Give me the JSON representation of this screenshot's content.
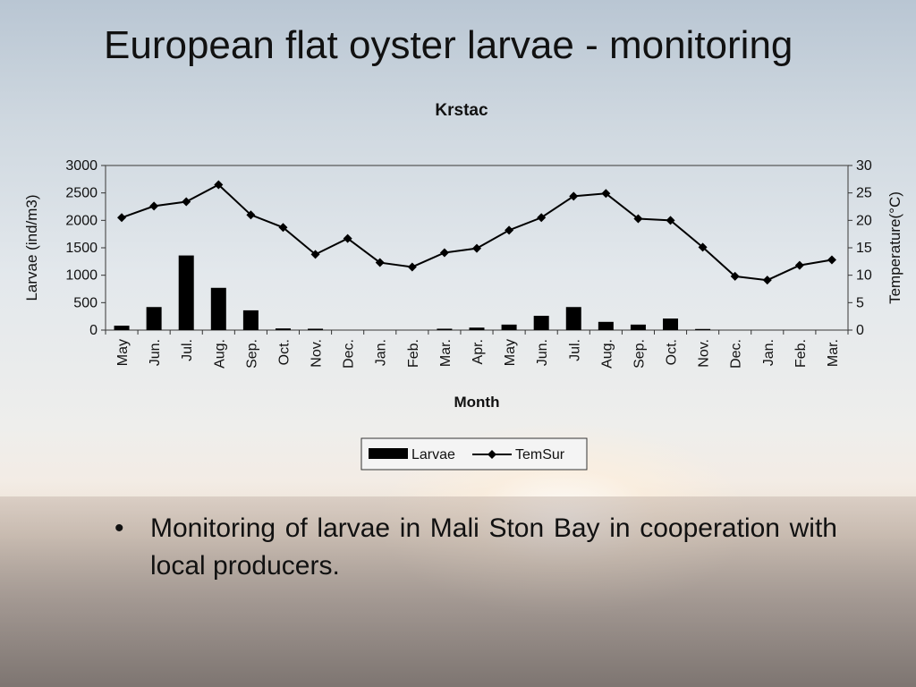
{
  "slide": {
    "title": "European flat oyster larvae - monitoring",
    "bullet": "Monitoring of larvae in Mali Ston Bay in cooperation with local producers."
  },
  "chart_data": {
    "type": "bar",
    "title": "Krstac",
    "xlabel": "Month",
    "ylabel": "Larvae (ind/m3)",
    "y2label": "Temperature(°C)",
    "categories": [
      "May",
      "Jun.",
      "Jul.",
      "Aug.",
      "Sep.",
      "Oct.",
      "Nov.",
      "Dec.",
      "Jan.",
      "Feb.",
      "Mar.",
      "Apr.",
      "May",
      "Jun.",
      "Jul.",
      "Aug.",
      "Sep.",
      "Oct.",
      "Nov.",
      "Dec.",
      "Jan.",
      "Feb.",
      "Mar."
    ],
    "ylim": [
      0,
      3000
    ],
    "yticks": [
      0,
      500,
      1000,
      1500,
      2000,
      2500,
      3000
    ],
    "y2lim": [
      0,
      30
    ],
    "y2ticks": [
      0,
      5,
      10,
      15,
      20,
      25,
      30
    ],
    "series": [
      {
        "name": "Larvae",
        "type": "bar",
        "axis": "left",
        "color": "#000000",
        "values": [
          80,
          420,
          1360,
          770,
          360,
          30,
          25,
          0,
          0,
          0,
          25,
          45,
          100,
          260,
          420,
          150,
          100,
          210,
          20,
          0,
          0,
          0,
          0
        ]
      },
      {
        "name": "TemSur",
        "type": "line",
        "axis": "right",
        "color": "#000000",
        "marker": "diamond",
        "values": [
          20.5,
          22.6,
          23.4,
          26.5,
          21.0,
          18.7,
          13.8,
          16.7,
          12.3,
          11.5,
          14.1,
          14.9,
          18.2,
          20.5,
          24.4,
          24.9,
          20.3,
          20.0,
          15.1,
          9.8,
          9.1,
          11.8,
          12.8
        ]
      }
    ],
    "legend_position": "bottom-center",
    "grid": false
  }
}
